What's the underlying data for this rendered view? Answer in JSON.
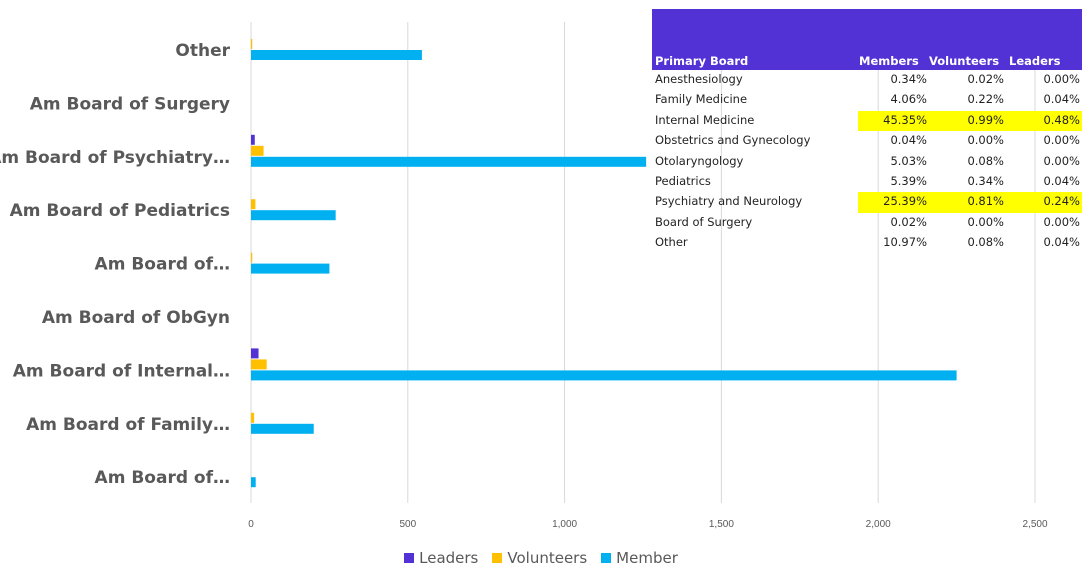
{
  "chart_data": {
    "type": "bar",
    "orientation": "horizontal",
    "categories": [
      "Other",
      "Am Board of Surgery",
      "Am Board of Psychiatry…",
      "Am Board of Pediatrics",
      "Am Board of…",
      "Am Board of ObGyn",
      "Am Board of Internal…",
      "Am Board of Family…",
      "Am Board of…"
    ],
    "series": [
      {
        "name": "Leaders",
        "color": "#5232d4",
        "values": [
          0,
          0,
          12,
          0,
          0,
          0,
          24,
          0,
          0
        ]
      },
      {
        "name": "Volunteers",
        "color": "#ffc000",
        "values": [
          4,
          0,
          40,
          14,
          4,
          0,
          50,
          10,
          0
        ]
      },
      {
        "name": "Member",
        "color": "#00b0f0",
        "values": [
          545,
          0,
          1260,
          270,
          250,
          0,
          2250,
          200,
          15
        ]
      }
    ],
    "x_ticks": [
      "0",
      "500",
      "1,000",
      "1,500",
      "2,000",
      "2,500"
    ],
    "xlim": [
      0,
      2600
    ],
    "grid": true,
    "legend_position": "bottom"
  },
  "table": {
    "headers": {
      "board": "Primary Board",
      "members": "Members",
      "volunteers": "Volunteers",
      "leaders": "Leaders"
    },
    "rows": [
      {
        "board": "Anesthesiology",
        "members": "0.34%",
        "volunteers": "0.02%",
        "leaders": "0.00%"
      },
      {
        "board": "Family Medicine",
        "members": "4.06%",
        "volunteers": "0.22%",
        "leaders": "0.04%"
      },
      {
        "board": "Internal Medicine",
        "members": "45.35%",
        "volunteers": "0.99%",
        "leaders": "0.48%"
      },
      {
        "board": "Obstetrics and Gynecology",
        "members": "0.04%",
        "volunteers": "0.00%",
        "leaders": "0.00%"
      },
      {
        "board": "Otolaryngology",
        "members": "5.03%",
        "volunteers": "0.08%",
        "leaders": "0.00%"
      },
      {
        "board": "Pediatrics",
        "members": "5.39%",
        "volunteers": "0.34%",
        "leaders": "0.04%"
      },
      {
        "board": "Psychiatry and Neurology",
        "members": "25.39%",
        "volunteers": "0.81%",
        "leaders": "0.24%"
      },
      {
        "board": "Board of Surgery",
        "members": "0.02%",
        "volunteers": "0.00%",
        "leaders": "0.00%"
      },
      {
        "board": "Other",
        "members": "10.97%",
        "volunteers": "0.08%",
        "leaders": "0.04%"
      }
    ],
    "highlight_color": "#ffff00",
    "highlighted_rows": [
      "Internal Medicine",
      "Psychiatry and Neurology"
    ]
  },
  "legend": [
    {
      "label": "Leaders",
      "color": "#5232d4"
    },
    {
      "label": "Volunteers",
      "color": "#ffc000"
    },
    {
      "label": "Member",
      "color": "#00b0f0"
    }
  ]
}
